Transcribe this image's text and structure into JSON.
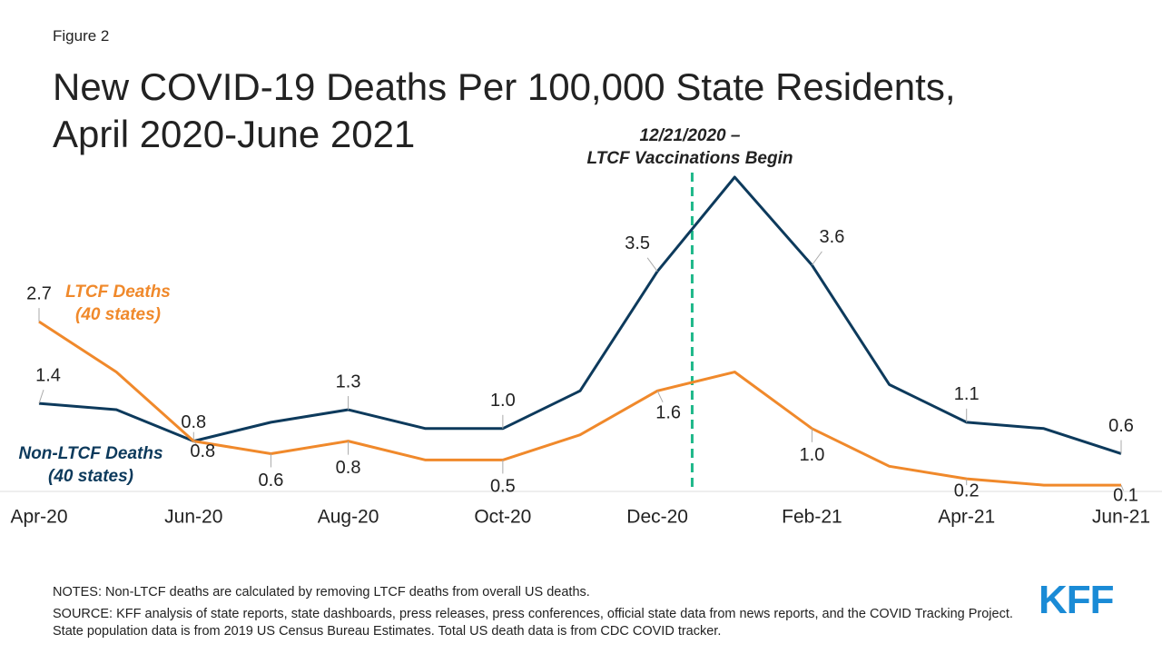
{
  "figure_label": "Figure 2",
  "notes": "NOTES: Non-LTCF deaths are calculated by removing LTCF deaths from overall US deaths.",
  "source": "SOURCE: KFF analysis of state reports, state dashboards, press releases, press conferences, official state data from news reports, and the COVID Tracking Project. State population data is from 2019 US Census Bureau Estimates. Total US death data is from CDC COVID tracker.",
  "logo": "KFF",
  "chart_data": {
    "type": "line",
    "title": "New COVID-19 Deaths Per 100,000 State Residents,\nApril 2020-June 2021",
    "annotation": "12/21/2020 –\nLTCF Vaccinations Begin",
    "categories": [
      "Apr-20",
      null,
      "Jun-20",
      null,
      "Aug-20",
      null,
      "Oct-20",
      null,
      "Dec-20",
      null,
      "Feb-21",
      null,
      "Apr-21",
      null,
      "Jun-21"
    ],
    "series": [
      {
        "name": "Non-LTCF Deaths\n(40 states)",
        "color": "#0d3a5c",
        "values": [
          1.4,
          1.3,
          0.8,
          1.1,
          1.3,
          1.0,
          1.0,
          1.6,
          3.5,
          5.0,
          3.6,
          1.7,
          1.1,
          1.0,
          0.6
        ],
        "value_labels": [
          "1.4",
          null,
          "0.8",
          null,
          "1.3",
          null,
          "1.0",
          null,
          "3.5",
          null,
          "3.6",
          null,
          "1.1",
          null,
          "0.6"
        ]
      },
      {
        "name": "LTCF Deaths\n(40 states)",
        "color": "#f0892b",
        "values": [
          2.7,
          1.9,
          0.8,
          0.6,
          0.8,
          0.5,
          0.5,
          0.9,
          1.6,
          1.9,
          1.0,
          0.4,
          0.2,
          0.1,
          0.1
        ],
        "value_labels": [
          "2.7",
          null,
          "0.8",
          "0.6",
          "0.8",
          null,
          "0.5",
          null,
          "1.6",
          null,
          "1.0",
          null,
          "0.2",
          null,
          "0.1"
        ]
      }
    ]
  }
}
